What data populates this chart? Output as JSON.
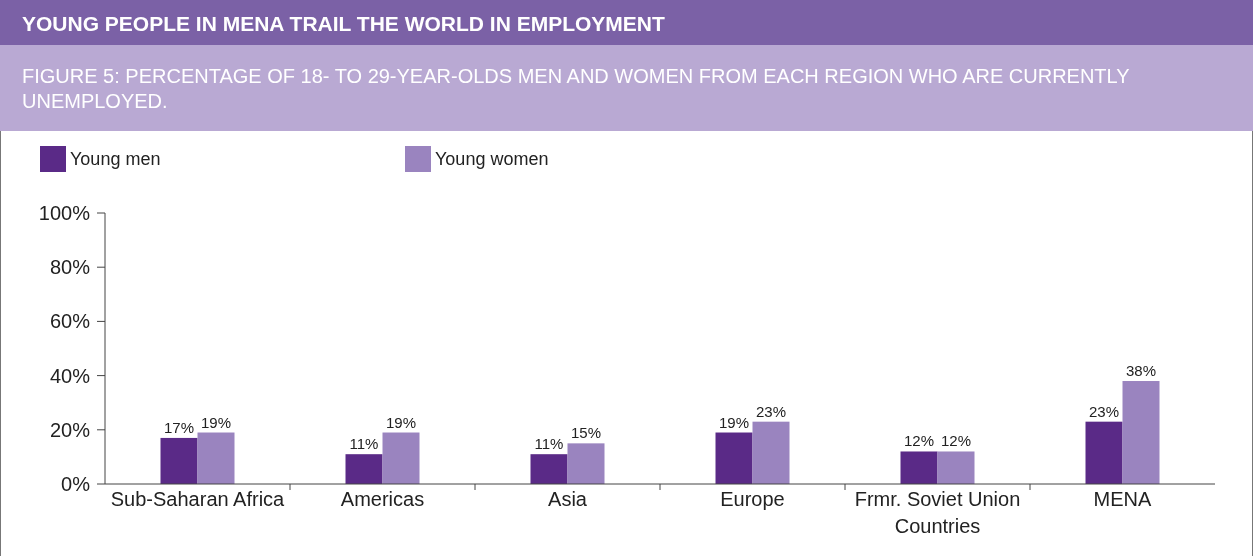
{
  "chart_data": {
    "type": "bar",
    "title": "YOUNG PEOPLE IN MENA TRAIL THE WORLD IN EMPLOYMENT",
    "subtitle": "FIGURE 5: PERCENTAGE OF 18- TO 29-YEAR-OLDS MEN AND WOMEN FROM EACH REGION WHO ARE CURRENTLY UNEMPLOYED.",
    "categories": [
      "Sub-Saharan Africa",
      "Americas",
      "Asia",
      "Europe",
      "Frmr. Soviet Union Countries",
      "MENA"
    ],
    "series": [
      {
        "name": "Young men",
        "color": "#5a2a87",
        "values": [
          17,
          11,
          11,
          19,
          12,
          23
        ],
        "value_labels": [
          "17%",
          "11%",
          "11%",
          "19%",
          "12%",
          "23%"
        ]
      },
      {
        "name": "Young women",
        "color": "#9a84bf",
        "values": [
          19,
          19,
          15,
          23,
          12,
          38
        ],
        "value_labels": [
          "19%",
          "19%",
          "15%",
          "23%",
          "12%",
          "38%"
        ]
      }
    ],
    "ylim": [
      0,
      100
    ],
    "yticks": [
      {
        "value": 0,
        "label": "0%"
      },
      {
        "value": 20,
        "label": "20%"
      },
      {
        "value": 40,
        "label": "40%"
      },
      {
        "value": 60,
        "label": "60%"
      },
      {
        "value": 80,
        "label": "80%"
      },
      {
        "value": 100,
        "label": "100%"
      }
    ],
    "grid": false,
    "legend": "top left"
  }
}
